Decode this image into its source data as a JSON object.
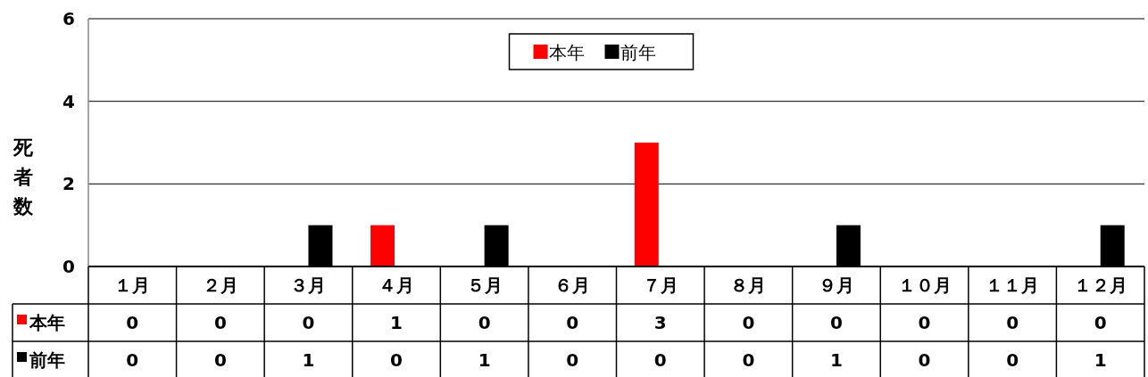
{
  "chart_data": {
    "type": "bar",
    "ylabel": "死者数",
    "categories": [
      "１月",
      "２月",
      "３月",
      "４月",
      "５月",
      "６月",
      "７月",
      "８月",
      "９月",
      "１０月",
      "１１月",
      "１２月"
    ],
    "series": [
      {
        "name": "本年",
        "color": "#ff0000",
        "values": [
          0,
          0,
          0,
          1,
          0,
          0,
          3,
          0,
          0,
          0,
          0,
          0
        ]
      },
      {
        "name": "前年",
        "color": "#000000",
        "values": [
          0,
          0,
          1,
          0,
          1,
          0,
          0,
          0,
          1,
          0,
          0,
          1
        ]
      }
    ],
    "ylim": [
      0,
      6
    ],
    "yticks": [
      0,
      2,
      4,
      6
    ],
    "grid": "y",
    "legend": "top",
    "data_labels": true
  }
}
